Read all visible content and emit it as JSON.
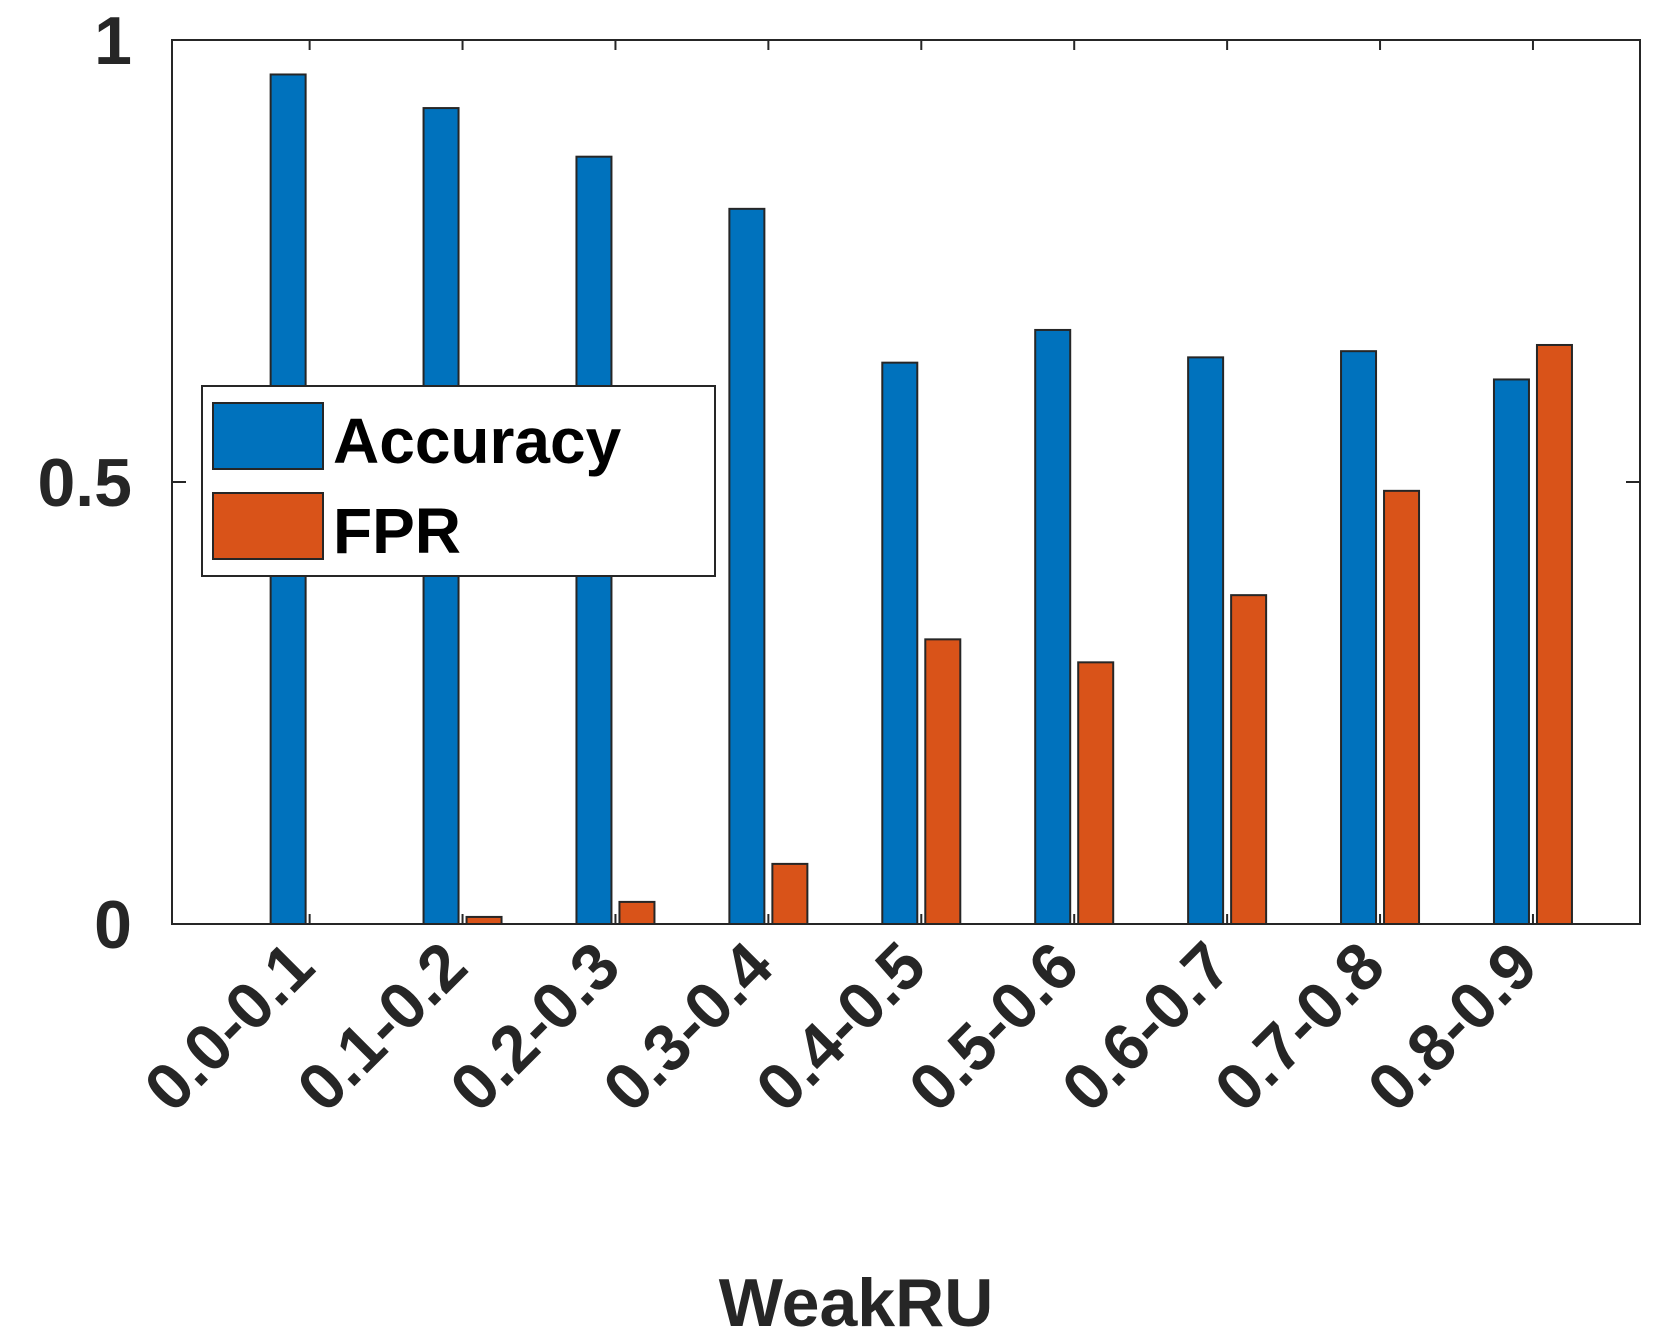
{
  "chart_data": {
    "type": "bar",
    "xlabel": "WeakRU",
    "ylabel": "",
    "ylim": [
      0,
      1
    ],
    "yticks": [
      "0",
      "0.5",
      "1"
    ],
    "categories": [
      "0.0-0.1",
      "0.1-0.2",
      "0.2-0.3",
      "0.3-0.4",
      "0.4-0.5",
      "0.5-0.6",
      "0.6-0.7",
      "0.7-0.8",
      "0.8-0.9"
    ],
    "series": [
      {
        "name": "Accuracy",
        "color": "#0072BD",
        "values": [
          0.961,
          0.923,
          0.868,
          0.809,
          0.635,
          0.672,
          0.641,
          0.648,
          0.616
        ]
      },
      {
        "name": "FPR",
        "color": "#D95319",
        "values": [
          0.0,
          0.008,
          0.025,
          0.068,
          0.322,
          0.296,
          0.372,
          0.49,
          0.655
        ]
      }
    ],
    "legend": {
      "position": "center-left",
      "entries": [
        "Accuracy",
        "FPR"
      ]
    },
    "grid": false
  }
}
